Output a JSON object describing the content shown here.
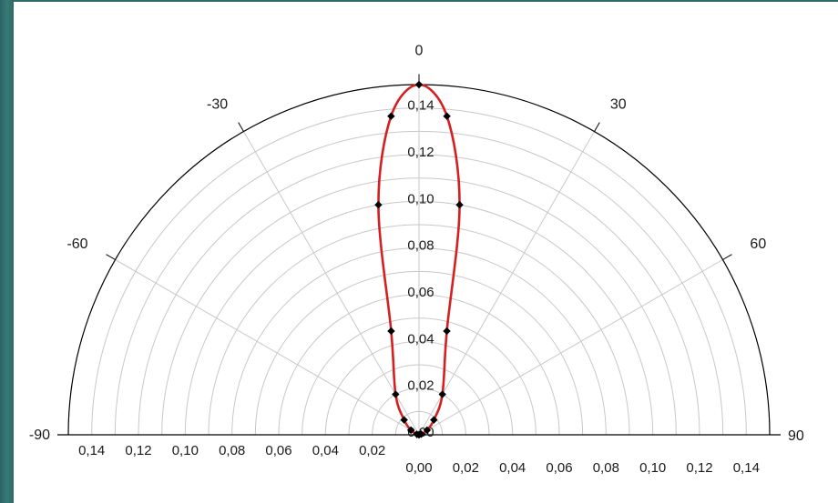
{
  "colors": {
    "background": "#2f6b68",
    "panel": "#ffffff",
    "grid": "#c8c8c8",
    "axis": "#000000",
    "curve": "#d42020",
    "points": "#000000"
  },
  "chart_data": {
    "type": "polar",
    "half": "upper",
    "angle_labels": [
      {
        "angle": -90,
        "label": "-90"
      },
      {
        "angle": -60,
        "label": "-60"
      },
      {
        "angle": -30,
        "label": "-30"
      },
      {
        "angle": 0,
        "label": "0"
      },
      {
        "angle": 30,
        "label": "30"
      },
      {
        "angle": 60,
        "label": "60"
      },
      {
        "angle": 90,
        "label": "90"
      }
    ],
    "radial_range": [
      0,
      0.15
    ],
    "radial_grid_step": 0.01,
    "radial_tick_values": [
      0,
      0.02,
      0.04,
      0.06,
      0.08,
      0.1,
      0.12,
      0.14
    ],
    "radial_tick_labels": [
      "0,00",
      "0,02",
      "0,04",
      "0,06",
      "0,08",
      "0,10",
      "0,12",
      "0,14"
    ],
    "series": [
      {
        "curve_color": "#d42020",
        "marker_color": "#000000",
        "points": [
          {
            "angle": -90,
            "r": 0.0
          },
          {
            "angle": -75,
            "r": 0.001
          },
          {
            "angle": -60,
            "r": 0.004
          },
          {
            "angle": -45,
            "r": 0.009
          },
          {
            "angle": -30,
            "r": 0.02
          },
          {
            "angle": -15,
            "r": 0.046
          },
          {
            "angle": -10,
            "r": 0.1
          },
          {
            "angle": -5,
            "r": 0.137
          },
          {
            "angle": 0,
            "r": 0.15
          },
          {
            "angle": 5,
            "r": 0.137
          },
          {
            "angle": 10,
            "r": 0.1
          },
          {
            "angle": 15,
            "r": 0.046
          },
          {
            "angle": 30,
            "r": 0.02
          },
          {
            "angle": 45,
            "r": 0.009
          },
          {
            "angle": 60,
            "r": 0.004
          },
          {
            "angle": 75,
            "r": 0.001
          },
          {
            "angle": 90,
            "r": 0.0
          }
        ]
      }
    ]
  }
}
